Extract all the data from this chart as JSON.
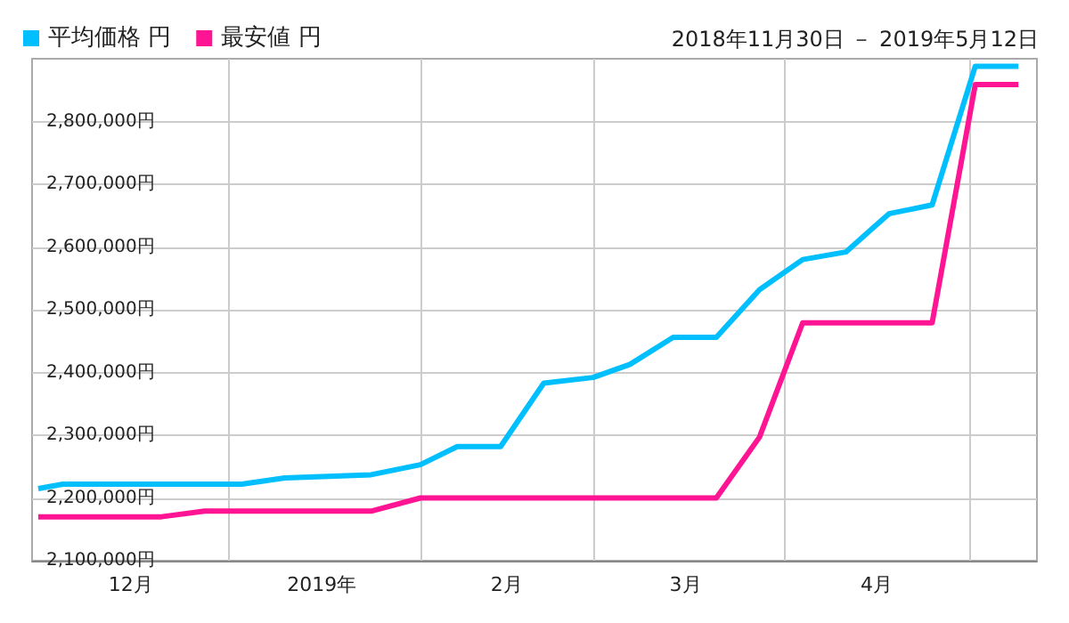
{
  "chart_data": {
    "type": "line",
    "subtitle": "2018年11月30日 － 2019年5月12日",
    "xlim": [
      "2018-11-30",
      "2019-05-12"
    ],
    "xticks": [
      {
        "value": "2018-12-16",
        "label": "12月"
      },
      {
        "value": "2019-01-01",
        "label": null
      },
      {
        "value": "2019-01-16",
        "label": "2019年"
      },
      {
        "value": "2019-02-01",
        "label": null
      },
      {
        "value": "2019-02-15",
        "label": "2月"
      },
      {
        "value": "2019-03-01",
        "label": null
      },
      {
        "value": "2019-03-16",
        "label": "3月"
      },
      {
        "value": "2019-04-01",
        "label": null
      },
      {
        "value": "2019-04-16",
        "label": "4月"
      },
      {
        "value": "2019-05-01",
        "label": null
      }
    ],
    "ylim": [
      2100000,
      2900000
    ],
    "yticks": [
      {
        "value": 2100000,
        "label": "2,100,000円"
      },
      {
        "value": 2200000,
        "label": "2,200,000円"
      },
      {
        "value": 2300000,
        "label": "2,300,000円"
      },
      {
        "value": 2400000,
        "label": "2,400,000円"
      },
      {
        "value": 2500000,
        "label": "2,500,000円"
      },
      {
        "value": 2600000,
        "label": "2,600,000円"
      },
      {
        "value": 2700000,
        "label": "2,700,000円"
      },
      {
        "value": 2800000,
        "label": "2,800,000円"
      }
    ],
    "series": [
      {
        "name": "平均価格 円",
        "color": "#00bfff",
        "x": [
          "2018-12-01",
          "2018-12-05",
          "2019-01-03",
          "2019-01-10",
          "2019-01-24",
          "2019-02-01",
          "2019-02-07",
          "2019-02-14",
          "2019-02-21",
          "2019-03-01",
          "2019-03-07",
          "2019-03-14",
          "2019-03-21",
          "2019-03-28",
          "2019-04-04",
          "2019-04-11",
          "2019-04-18",
          "2019-04-25",
          "2019-05-02",
          "2019-05-09"
        ],
        "values": [
          2215000,
          2222000,
          2222000,
          2232000,
          2237000,
          2253000,
          2282000,
          2282000,
          2383000,
          2392000,
          2413000,
          2456000,
          2456000,
          2532000,
          2580000,
          2592000,
          2653000,
          2667000,
          2888000,
          2888000
        ]
      },
      {
        "name": "最安値 円",
        "color": "#ff1493",
        "x": [
          "2018-12-01",
          "2018-12-21",
          "2018-12-28",
          "2019-01-24",
          "2019-02-01",
          "2019-03-21",
          "2019-03-28",
          "2019-04-04",
          "2019-04-25",
          "2019-05-02",
          "2019-05-09"
        ],
        "values": [
          2170000,
          2170000,
          2179000,
          2179000,
          2200000,
          2200000,
          2297000,
          2479000,
          2479000,
          2859000,
          2859000
        ]
      }
    ],
    "grid": true,
    "legend": "top left",
    "marker": "none",
    "line_style": "solid"
  }
}
